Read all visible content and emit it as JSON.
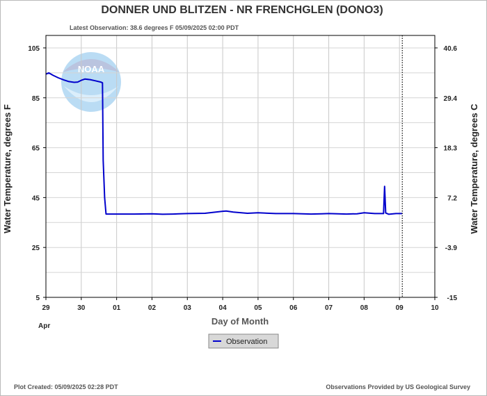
{
  "chart_data": {
    "type": "line",
    "title": "DONNER UND BLITZEN - NR FRENCHGLEN  (DONO3)",
    "subtitle": "Latest Observation: 38.6 degrees F  05/09/2025 02:00 PDT",
    "xlabel": "Day of Month",
    "ylabel": "Water Temperature, degrees F",
    "y2label": "Water Temperature, degrees C",
    "ylim": [
      5,
      110
    ],
    "y_ticks": [
      5,
      25,
      45,
      65,
      85,
      105
    ],
    "y2_ticks": [
      "-15",
      "-3.9",
      "7.2",
      "18.3",
      "29.4",
      "40.6"
    ],
    "x_ticks": [
      "29",
      "30",
      "01",
      "02",
      "03",
      "04",
      "05",
      "06",
      "07",
      "08",
      "09",
      "10"
    ],
    "x_month_label": "Apr",
    "xlim_days": [
      0,
      11
    ],
    "latest_marker_day": 10.08,
    "grid": true,
    "legend_position": "bottom-center",
    "series": [
      {
        "name": "Observation",
        "color": "#0000cc",
        "points": [
          [
            0.0,
            94.5
          ],
          [
            0.08,
            95.0
          ],
          [
            0.2,
            94.0
          ],
          [
            0.35,
            93.0
          ],
          [
            0.5,
            92.2
          ],
          [
            0.65,
            91.5
          ],
          [
            0.8,
            91.2
          ],
          [
            0.9,
            91.3
          ],
          [
            1.0,
            92.0
          ],
          [
            1.1,
            92.5
          ],
          [
            1.25,
            92.3
          ],
          [
            1.4,
            91.8
          ],
          [
            1.55,
            91.3
          ],
          [
            1.6,
            91.0
          ],
          [
            1.62,
            60.0
          ],
          [
            1.66,
            45.0
          ],
          [
            1.7,
            38.4
          ],
          [
            2.0,
            38.4
          ],
          [
            2.5,
            38.4
          ],
          [
            3.0,
            38.5
          ],
          [
            3.3,
            38.3
          ],
          [
            3.6,
            38.4
          ],
          [
            4.0,
            38.6
          ],
          [
            4.5,
            38.7
          ],
          [
            5.0,
            39.5
          ],
          [
            5.1,
            39.6
          ],
          [
            5.3,
            39.2
          ],
          [
            5.7,
            38.7
          ],
          [
            6.0,
            38.9
          ],
          [
            6.5,
            38.6
          ],
          [
            7.0,
            38.6
          ],
          [
            7.5,
            38.4
          ],
          [
            7.8,
            38.5
          ],
          [
            8.0,
            38.6
          ],
          [
            8.5,
            38.4
          ],
          [
            8.8,
            38.5
          ],
          [
            9.0,
            38.9
          ],
          [
            9.3,
            38.6
          ],
          [
            9.55,
            38.6
          ],
          [
            9.58,
            49.5
          ],
          [
            9.61,
            38.8
          ],
          [
            9.7,
            38.3
          ],
          [
            9.9,
            38.6
          ],
          [
            10.08,
            38.6
          ]
        ]
      }
    ]
  },
  "footer": {
    "plot_created": "Plot Created: 05/09/2025 02:28 PDT",
    "provided_by": "Observations Provided by US Geological Survey"
  },
  "logo_text": "NOAA"
}
